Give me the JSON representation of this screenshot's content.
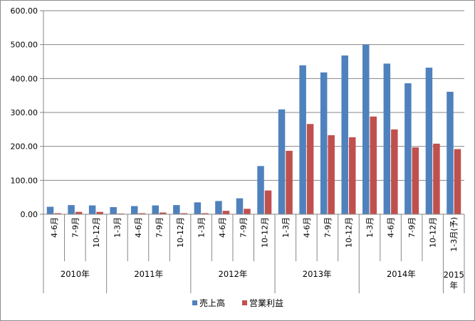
{
  "chart_data": {
    "type": "bar",
    "y_ticks": [
      "0.00",
      "100.00",
      "200.00",
      "300.00",
      "400.00",
      "500.00",
      "600.00"
    ],
    "ylim": [
      0,
      600
    ],
    "grid": true,
    "legend_position": "bottom",
    "categories": [
      "4-6月",
      "7-9月",
      "10-12月",
      "1-3月",
      "4-6月",
      "7-9月",
      "10-12月",
      "1-3月",
      "4-6月",
      "7-9月",
      "10-12月",
      "1-3月",
      "4-6月",
      "7-9月",
      "10-12月",
      "1-3月",
      "4-6月",
      "7-9月",
      "10-12月",
      "1-3月(予)"
    ],
    "year_groups": [
      {
        "label": "2010年",
        "count": 3
      },
      {
        "label": "2011年",
        "count": 4
      },
      {
        "label": "2012年",
        "count": 4
      },
      {
        "label": "2013年",
        "count": 4
      },
      {
        "label": "2014年",
        "count": 4
      },
      {
        "label": "2015年",
        "count": 1
      }
    ],
    "series": [
      {
        "name": "売上高",
        "color": "#4f81bd",
        "values": [
          22,
          27,
          26,
          21,
          24,
          26,
          27,
          35,
          39,
          47,
          142,
          309,
          439,
          418,
          468,
          500,
          444,
          386,
          432,
          361
        ]
      },
      {
        "name": "営業利益",
        "color": "#c0504d",
        "values": [
          3,
          7,
          7,
          2,
          3,
          5,
          3,
          3,
          10,
          16,
          70,
          187,
          266,
          233,
          227,
          288,
          250,
          197,
          208,
          192
        ]
      }
    ]
  }
}
